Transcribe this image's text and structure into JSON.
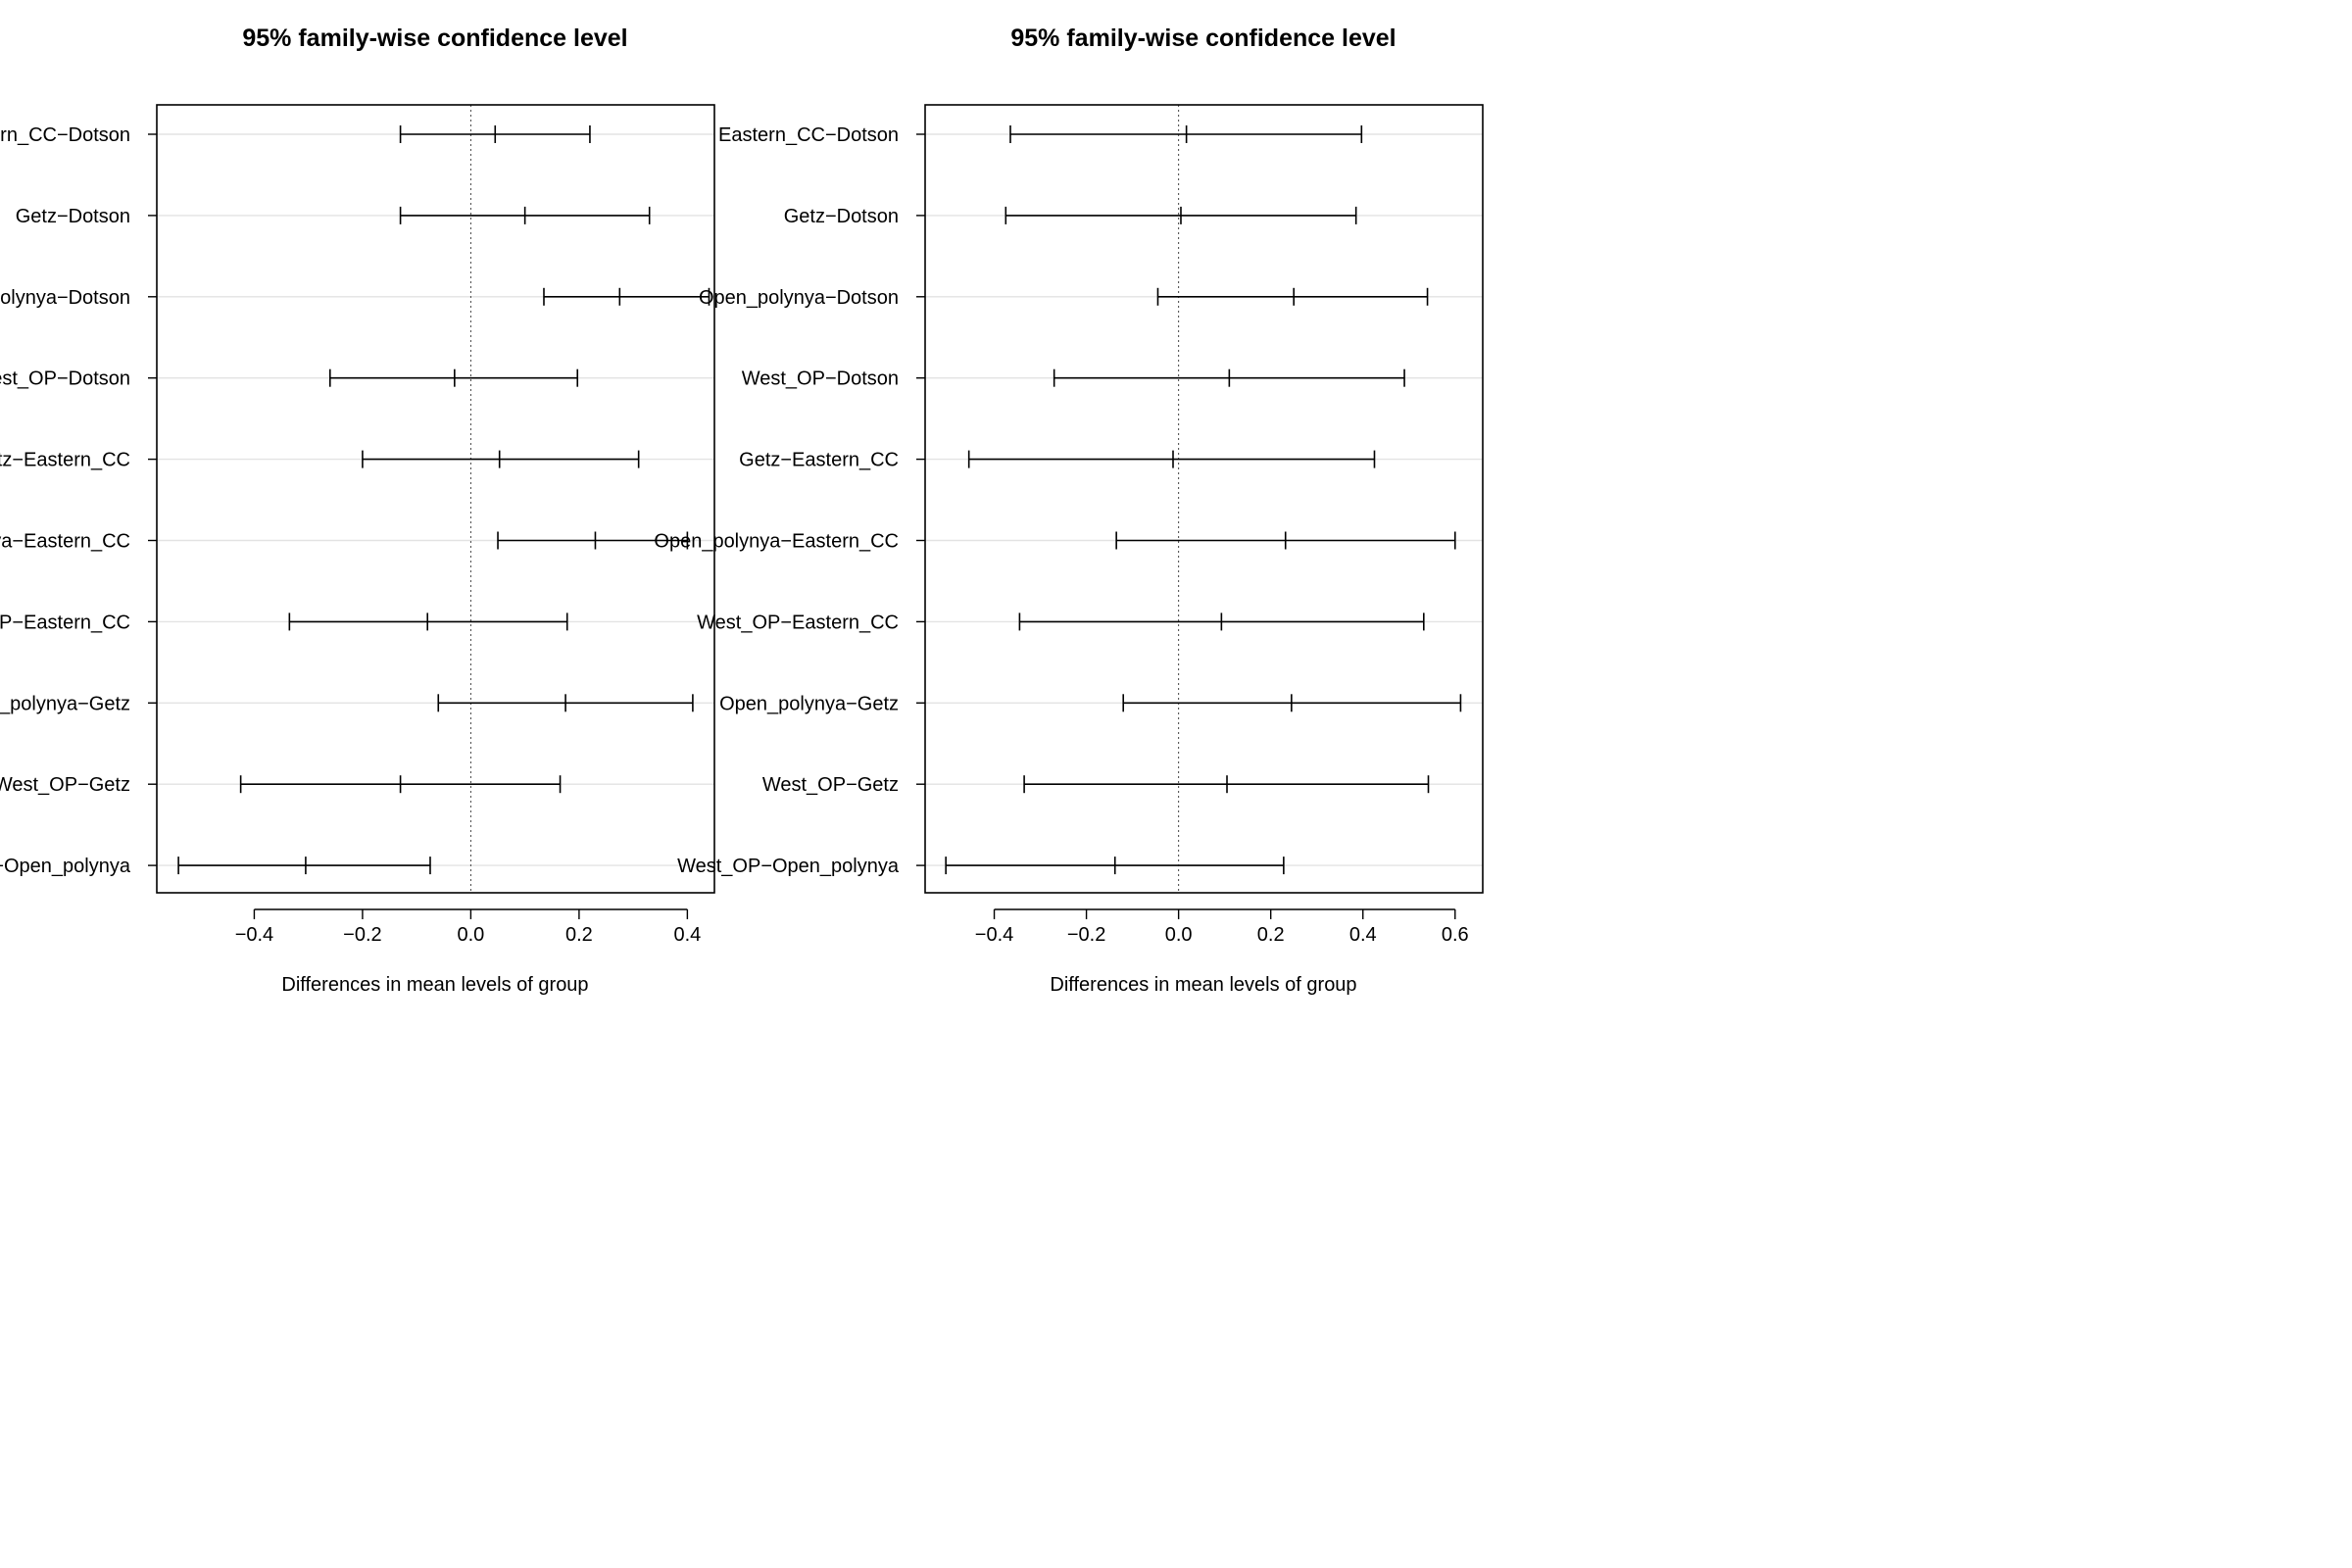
{
  "chart_data": [
    {
      "type": "errorbar",
      "title": "95% family-wise confidence level",
      "xlabel": "Differences in mean levels of group",
      "ylabel": "",
      "xlim": [
        -0.58,
        0.45
      ],
      "xticks": [
        "-0.4",
        "-0.2",
        "0.0",
        "0.2",
        "0.4"
      ],
      "xtick_values": [
        -0.4,
        -0.2,
        0.0,
        0.2,
        0.4
      ],
      "reference_line": 0,
      "grid": "horizontal",
      "categories": [
        "Eastern_CC−Dotson",
        "Getz−Dotson",
        "Open_polynya−Dotson",
        "West_OP−Dotson",
        "Getz−Eastern_CC",
        "Open_polynya−Eastern_CC",
        "West_OP−Eastern_CC",
        "Open_polynya−Getz",
        "West_OP−Getz",
        "West_OP−Open_polynya"
      ],
      "series": [
        {
          "name": "lwr",
          "values": [
            -0.13,
            -0.13,
            0.135,
            -0.26,
            -0.2,
            0.05,
            -0.335,
            -0.06,
            -0.425,
            -0.54
          ]
        },
        {
          "name": "diff",
          "values": [
            0.045,
            0.1,
            0.275,
            -0.03,
            0.053,
            0.23,
            -0.08,
            0.175,
            -0.13,
            -0.305
          ]
        },
        {
          "name": "upr",
          "values": [
            0.22,
            0.33,
            0.44,
            0.197,
            0.31,
            0.4,
            0.178,
            0.41,
            0.165,
            -0.075
          ]
        }
      ]
    },
    {
      "type": "errorbar",
      "title": "95% family-wise confidence level",
      "xlabel": "Differences in mean levels of group",
      "ylabel": "",
      "xlim": [
        -0.55,
        0.66
      ],
      "xticks": [
        "-0.4",
        "-0.2",
        "0.0",
        "0.2",
        "0.4",
        "0.6"
      ],
      "xtick_values": [
        -0.4,
        -0.2,
        0.0,
        0.2,
        0.4,
        0.6
      ],
      "reference_line": 0,
      "grid": "horizontal",
      "categories": [
        "Eastern_CC−Dotson",
        "Getz−Dotson",
        "Open_polynya−Dotson",
        "West_OP−Dotson",
        "Getz−Eastern_CC",
        "Open_polynya−Eastern_CC",
        "West_OP−Eastern_CC",
        "Open_polynya−Getz",
        "West_OP−Getz",
        "West_OP−Open_polynya"
      ],
      "series": [
        {
          "name": "lwr",
          "values": [
            -0.365,
            -0.375,
            -0.045,
            -0.27,
            -0.455,
            -0.135,
            -0.345,
            -0.12,
            -0.335,
            -0.505
          ]
        },
        {
          "name": "diff",
          "values": [
            0.017,
            0.005,
            0.25,
            0.11,
            -0.012,
            0.232,
            0.093,
            0.245,
            0.105,
            -0.138
          ]
        },
        {
          "name": "upr",
          "values": [
            0.397,
            0.385,
            0.54,
            0.49,
            0.425,
            0.6,
            0.532,
            0.612,
            0.542,
            0.228
          ]
        }
      ]
    }
  ]
}
